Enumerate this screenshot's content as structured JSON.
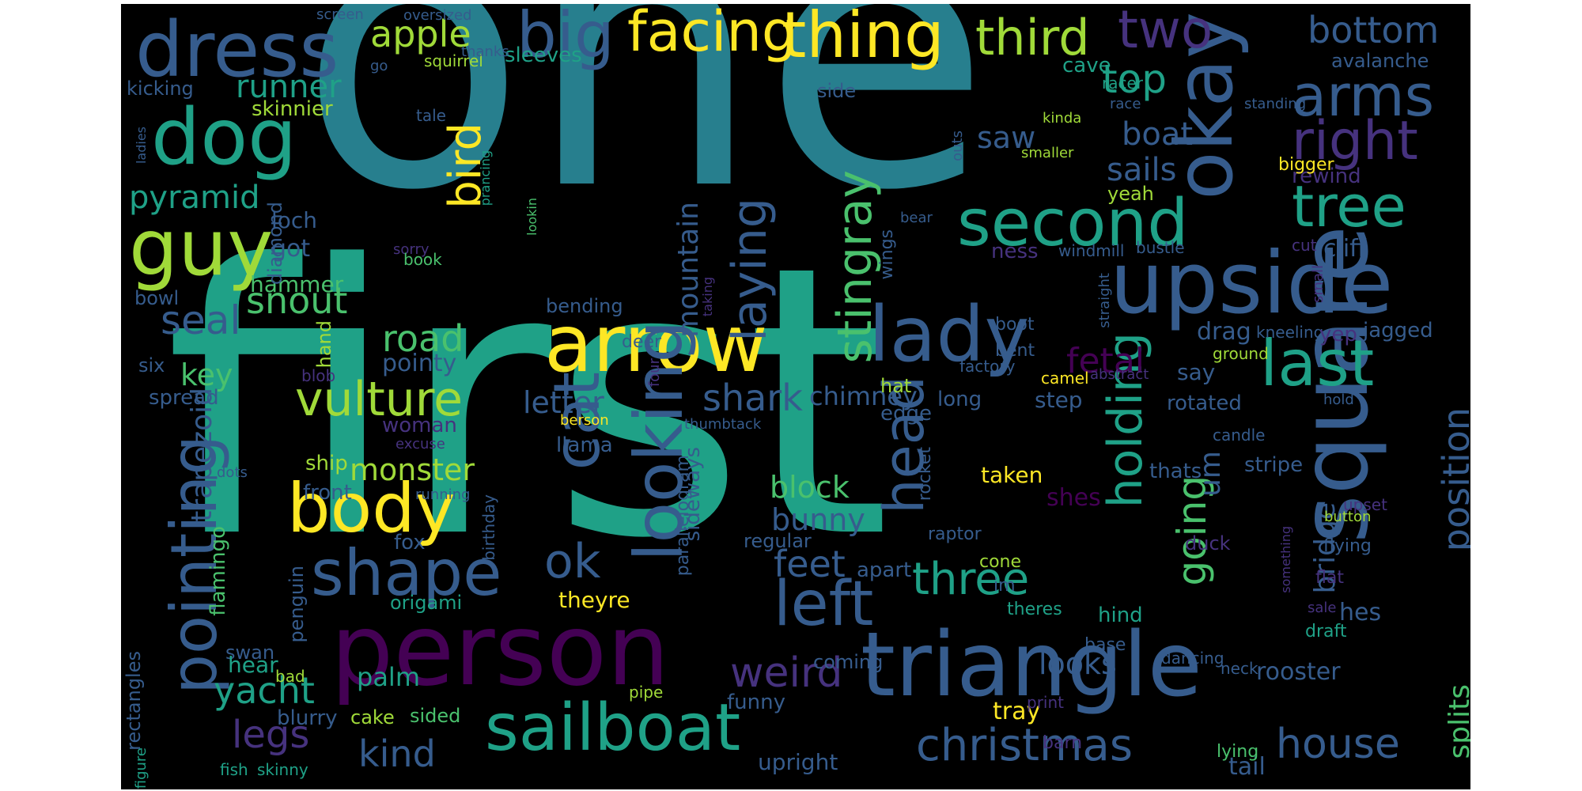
{
  "palette": {
    "background": "#000000",
    "yellow": "#FDE725",
    "lime": "#A0DA39",
    "green": "#4AC16D",
    "seagreen": "#1FA187",
    "teal": "#277F8E",
    "steel": "#365C8D",
    "indigo": "#46327E",
    "purple": "#440154"
  },
  "words": [
    {
      "text": "one"
    },
    {
      "text": "first"
    },
    {
      "text": "person"
    },
    {
      "text": "triangle"
    },
    {
      "text": "square"
    },
    {
      "text": "upside"
    },
    {
      "text": "arrow"
    },
    {
      "text": "sailboat"
    },
    {
      "text": "okay"
    },
    {
      "text": "dress"
    },
    {
      "text": "dog"
    },
    {
      "text": "guy"
    },
    {
      "text": "body"
    },
    {
      "text": "facing"
    },
    {
      "text": "thing"
    },
    {
      "text": "big"
    },
    {
      "text": "lady"
    },
    {
      "text": "second"
    },
    {
      "text": "left"
    },
    {
      "text": "last"
    },
    {
      "text": "shape"
    },
    {
      "text": "looking"
    },
    {
      "text": "pointing"
    },
    {
      "text": "cat"
    },
    {
      "text": "head"
    },
    {
      "text": "third"
    },
    {
      "text": "two"
    },
    {
      "text": "arms"
    },
    {
      "text": "tree"
    },
    {
      "text": "right"
    },
    {
      "text": "vulture"
    },
    {
      "text": "stingray"
    },
    {
      "text": "holding"
    },
    {
      "text": "laying"
    },
    {
      "text": "ok"
    },
    {
      "text": "bird"
    },
    {
      "text": "top"
    },
    {
      "text": "christmas"
    },
    {
      "text": "three"
    },
    {
      "text": "weird"
    },
    {
      "text": "house"
    },
    {
      "text": "going"
    },
    {
      "text": "position"
    },
    {
      "text": "apple"
    },
    {
      "text": "bottom"
    },
    {
      "text": "seal"
    },
    {
      "text": "feet"
    },
    {
      "text": "kind"
    },
    {
      "text": "legs"
    },
    {
      "text": "yacht"
    },
    {
      "text": "runner"
    },
    {
      "text": "pyramid"
    },
    {
      "text": "snout"
    },
    {
      "text": "road"
    },
    {
      "text": "mountain"
    },
    {
      "text": "shark"
    },
    {
      "text": "letter"
    },
    {
      "text": "fetal"
    },
    {
      "text": "boat"
    },
    {
      "text": "sails"
    },
    {
      "text": "saw"
    },
    {
      "text": "monster"
    },
    {
      "text": "block"
    },
    {
      "text": "bunny"
    },
    {
      "text": "trapezoid"
    },
    {
      "text": "looks"
    },
    {
      "text": "splits"
    },
    {
      "text": "bridge"
    },
    {
      "text": "key"
    },
    {
      "text": "palm"
    },
    {
      "text": "drag"
    },
    {
      "text": "um"
    },
    {
      "text": "chimney"
    },
    {
      "text": "got"
    },
    {
      "text": "hammer"
    },
    {
      "text": "pointy"
    },
    {
      "text": "step"
    },
    {
      "text": "cliff"
    },
    {
      "text": "tray"
    },
    {
      "text": "upright"
    },
    {
      "text": "tail"
    },
    {
      "text": "rooster"
    },
    {
      "text": "hes"
    },
    {
      "text": "shes"
    },
    {
      "text": "theyre"
    },
    {
      "text": "flamingo"
    },
    {
      "text": "sideways"
    },
    {
      "text": "parallelogram"
    },
    {
      "text": "skinnier"
    },
    {
      "text": "kicking"
    },
    {
      "text": "diamond"
    },
    {
      "text": "hand"
    },
    {
      "text": "loch"
    },
    {
      "text": "ness"
    },
    {
      "text": "bowl"
    },
    {
      "text": "six"
    },
    {
      "text": "spread"
    },
    {
      "text": "woman"
    },
    {
      "text": "ship"
    },
    {
      "text": "front"
    },
    {
      "text": "fox"
    },
    {
      "text": "origami"
    },
    {
      "text": "penguin"
    },
    {
      "text": "swan"
    },
    {
      "text": "hear"
    },
    {
      "text": "blurry"
    },
    {
      "text": "cake"
    },
    {
      "text": "sided"
    },
    {
      "text": "funny"
    },
    {
      "text": "coming"
    },
    {
      "text": "hind"
    },
    {
      "text": "base"
    },
    {
      "text": "apart"
    },
    {
      "text": "regular"
    },
    {
      "text": "taken"
    },
    {
      "text": "llama"
    },
    {
      "text": "bending"
    },
    {
      "text": "sleeves"
    },
    {
      "text": "squirrel"
    },
    {
      "text": "side"
    },
    {
      "text": "cave"
    },
    {
      "text": "racer"
    },
    {
      "text": "avalanche"
    },
    {
      "text": "standing"
    },
    {
      "text": "rewind"
    },
    {
      "text": "bigger"
    },
    {
      "text": "smaller"
    },
    {
      "text": "kinda"
    },
    {
      "text": "outs"
    },
    {
      "text": "yeah"
    },
    {
      "text": "windmill"
    },
    {
      "text": "bustle"
    },
    {
      "text": "cut"
    },
    {
      "text": "small"
    },
    {
      "text": "straight"
    },
    {
      "text": "kneeling"
    },
    {
      "text": "yep"
    },
    {
      "text": "jagged"
    },
    {
      "text": "ground"
    },
    {
      "text": "say"
    },
    {
      "text": "rotated"
    },
    {
      "text": "hold"
    },
    {
      "text": "candle"
    },
    {
      "text": "thats"
    },
    {
      "text": "stripe"
    },
    {
      "text": "upset"
    },
    {
      "text": "button"
    },
    {
      "text": "flying"
    },
    {
      "text": "flat"
    },
    {
      "text": "draft"
    },
    {
      "text": "sale"
    },
    {
      "text": "something"
    },
    {
      "text": "duck"
    },
    {
      "text": "neck"
    },
    {
      "text": "theres"
    },
    {
      "text": "cone"
    },
    {
      "text": "raptor"
    },
    {
      "text": "im"
    },
    {
      "text": "dancing"
    },
    {
      "text": "print"
    },
    {
      "text": "barn"
    },
    {
      "text": "lying"
    },
    {
      "text": "figure"
    },
    {
      "text": "fish"
    },
    {
      "text": "skinny"
    },
    {
      "text": "bad"
    },
    {
      "text": "pipe"
    },
    {
      "text": "rectangles"
    },
    {
      "text": "screen"
    },
    {
      "text": "oversized"
    },
    {
      "text": "thanks"
    },
    {
      "text": "go"
    },
    {
      "text": "ladies"
    },
    {
      "text": "tale"
    },
    {
      "text": "race"
    },
    {
      "text": "prancing"
    },
    {
      "text": "sorry"
    },
    {
      "text": "lookin"
    },
    {
      "text": "book"
    },
    {
      "text": "bear"
    },
    {
      "text": "wings"
    },
    {
      "text": "taking"
    },
    {
      "text": "deer"
    },
    {
      "text": "boot"
    },
    {
      "text": "bent"
    },
    {
      "text": "factory"
    },
    {
      "text": "camel"
    },
    {
      "text": "abstract"
    },
    {
      "text": "blob"
    },
    {
      "text": "long"
    },
    {
      "text": "edge"
    },
    {
      "text": "hat"
    },
    {
      "text": "four"
    },
    {
      "text": "thumbtack"
    },
    {
      "text": "berson"
    },
    {
      "text": "excuse"
    },
    {
      "text": "dots"
    },
    {
      "text": "rocket"
    },
    {
      "text": "running"
    },
    {
      "text": "birthday"
    }
  ]
}
